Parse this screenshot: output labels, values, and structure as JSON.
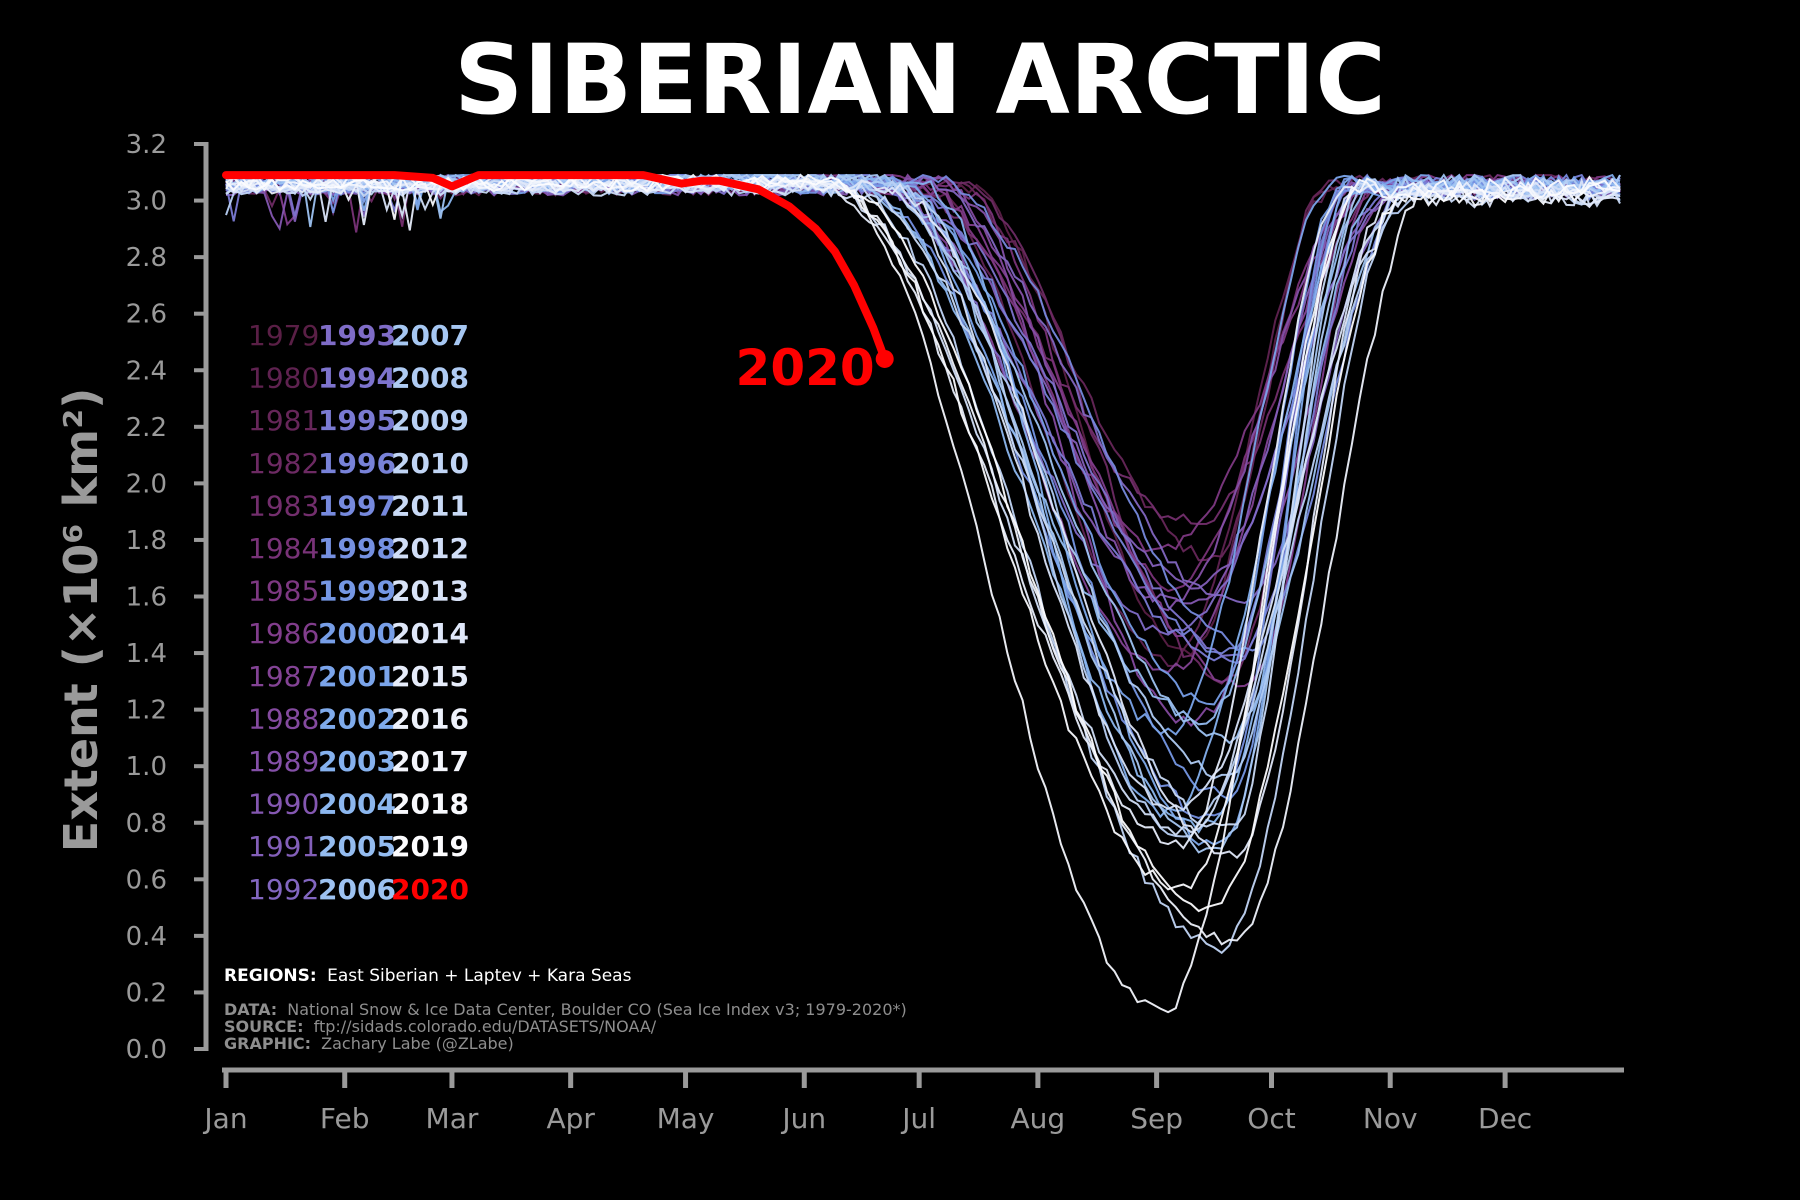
{
  "chart_data": {
    "type": "line",
    "title": "SIBERIAN ARCTIC",
    "ylabel": "Extent (×10⁶ km²)",
    "ylim": [
      0.0,
      3.2
    ],
    "yticks": [
      "0.0",
      "0.2",
      "0.4",
      "0.6",
      "0.8",
      "1.0",
      "1.2",
      "1.4",
      "1.6",
      "1.8",
      "2.0",
      "2.2",
      "2.4",
      "2.6",
      "2.8",
      "3.0",
      "3.2"
    ],
    "months": [
      "Jan",
      "Feb",
      "Mar",
      "Apr",
      "May",
      "Jun",
      "Jul",
      "Aug",
      "Sep",
      "Oct",
      "Nov",
      "Dec"
    ],
    "grid": false,
    "highlight_label": "2020",
    "highlight_color": "#ff0000",
    "highlight_series": {
      "name": "2020",
      "x_day": [
        1,
        15,
        30,
        45,
        55,
        60,
        67,
        80,
        95,
        110,
        120,
        125,
        130,
        140,
        148,
        155,
        160,
        165,
        170,
        173
      ],
      "y": [
        3.09,
        3.09,
        3.09,
        3.09,
        3.08,
        3.05,
        3.09,
        3.09,
        3.09,
        3.09,
        3.06,
        3.07,
        3.07,
        3.04,
        2.98,
        2.9,
        2.82,
        2.7,
        2.55,
        2.44
      ]
    },
    "historical_series_summary": {
      "years": "1979–2019",
      "winter_extent": 3.08,
      "min_extent_range": [
        0.12,
        2.17
      ],
      "min_day_range": [
        245,
        270
      ]
    },
    "legend_columns": [
      [
        "1979",
        "1980",
        "1981",
        "1982",
        "1983",
        "1984",
        "1985",
        "1986",
        "1987",
        "1988",
        "1989",
        "1990",
        "1991",
        "1992"
      ],
      [
        "1993",
        "1994",
        "1995",
        "1996",
        "1997",
        "1998",
        "1999",
        "2000",
        "2001",
        "2002",
        "2003",
        "2004",
        "2005",
        "2006"
      ],
      [
        "2007",
        "2008",
        "2009",
        "2010",
        "2011",
        "2012",
        "2013",
        "2014",
        "2015",
        "2016",
        "2017",
        "2018",
        "2019",
        "2020"
      ]
    ],
    "legend_colors": [
      [
        "#5a1f46",
        "#5f2250",
        "#662659",
        "#6d2a63",
        "#732e6d",
        "#793378",
        "#7d3882",
        "#813d8c",
        "#834395",
        "#844a9f",
        "#8450a8",
        "#8457b1",
        "#835fb9",
        "#8266c0"
      ],
      [
        "#7f6cc7",
        "#7d73cd",
        "#7a7ad3",
        "#7882d8",
        "#7689dd",
        "#7590e1",
        "#7597e4",
        "#779ee7",
        "#7aa4ea",
        "#7fabec",
        "#85b1ee",
        "#8cb7ef",
        "#94bcf0",
        "#9dc2f1"
      ],
      [
        "#a6c7f2",
        "#afcbf3",
        "#b8d0f4",
        "#c1d5f5",
        "#c9daf6",
        "#d1def7",
        "#d8e3f8",
        "#dfe7f9",
        "#e6ecfa",
        "#edf1fb",
        "#f3f5fc",
        "#f8f9fd",
        "#fcfcfe",
        "#ff0000"
      ]
    ],
    "notes": {
      "regions_label": "REGIONS:",
      "regions_text": "East Siberian + Laptev + Kara Seas",
      "data_label": "DATA:",
      "data_text": "National Snow & Ice Data Center, Boulder CO (Sea Ice Index v3; 1979-2020*)",
      "source_label": "SOURCE:",
      "source_text": "ftp://sidads.colorado.edu/DATASETS/NOAA/",
      "graphic_label": "GRAPHIC:",
      "graphic_text": "Zachary Labe (@ZLabe)"
    }
  }
}
